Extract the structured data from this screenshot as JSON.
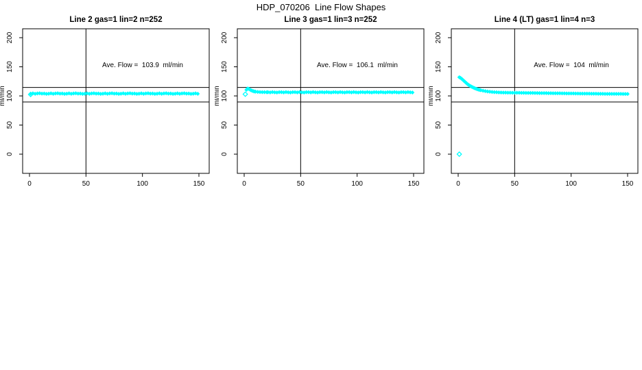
{
  "figure": {
    "title": "HDP_070206  Line Flow Shapes"
  },
  "chart_data": [
    {
      "type": "scatter",
      "title": "Line 2 gas=1 lin=2 n=252",
      "annotation": "Ave. Flow =  103.9  ml/min",
      "ave_flow": 103.9,
      "units": "ml/min",
      "ylabel": "ml/min",
      "xlabel": "",
      "xticks": [
        0,
        50,
        100,
        150
      ],
      "yticks": [
        0,
        50,
        100,
        150,
        200
      ],
      "xlim": [
        -6,
        159
      ],
      "ylim": [
        -33,
        215
      ],
      "grid": false,
      "legend": "none",
      "marker": "diamond",
      "marker_color": "#00FFFF",
      "refline_h": [
        114.5,
        89.5
      ],
      "refline_v": [
        50
      ],
      "open_points": [
        [
          1,
          102.5
        ]
      ],
      "points": [
        [
          1,
          103.8
        ],
        [
          3,
          104.4
        ],
        [
          5,
          103.7
        ],
        [
          7,
          104.2
        ],
        [
          9,
          104.6
        ],
        [
          11,
          103.9
        ],
        [
          13,
          104.1
        ],
        [
          15,
          103.6
        ],
        [
          17,
          103.8
        ],
        [
          19,
          104.4
        ],
        [
          21,
          103.7
        ],
        [
          23,
          104.2
        ],
        [
          25,
          104.6
        ],
        [
          27,
          103.9
        ],
        [
          29,
          104.1
        ],
        [
          31,
          103.6
        ],
        [
          33,
          103.8
        ],
        [
          35,
          104.4
        ],
        [
          37,
          103.7
        ],
        [
          39,
          104.2
        ],
        [
          41,
          104.6
        ],
        [
          43,
          103.9
        ],
        [
          45,
          104.1
        ],
        [
          47,
          103.6
        ],
        [
          49,
          103.8
        ],
        [
          51,
          104.4
        ],
        [
          53,
          103.7
        ],
        [
          55,
          104.2
        ],
        [
          57,
          104.6
        ],
        [
          59,
          103.9
        ],
        [
          61,
          104.1
        ],
        [
          63,
          103.6
        ],
        [
          65,
          103.8
        ],
        [
          67,
          104.4
        ],
        [
          69,
          103.7
        ],
        [
          71,
          104.2
        ],
        [
          73,
          104.6
        ],
        [
          75,
          103.9
        ],
        [
          77,
          104.1
        ],
        [
          79,
          103.6
        ],
        [
          81,
          103.8
        ],
        [
          83,
          104.4
        ],
        [
          85,
          103.7
        ],
        [
          87,
          104.2
        ],
        [
          89,
          104.6
        ],
        [
          91,
          103.9
        ],
        [
          93,
          104.1
        ],
        [
          95,
          103.6
        ],
        [
          97,
          103.8
        ],
        [
          99,
          104.4
        ],
        [
          101,
          103.7
        ],
        [
          103,
          104.2
        ],
        [
          105,
          104.6
        ],
        [
          107,
          103.9
        ],
        [
          109,
          104.1
        ],
        [
          111,
          103.6
        ],
        [
          113,
          103.8
        ],
        [
          115,
          104.4
        ],
        [
          117,
          103.7
        ],
        [
          119,
          104.2
        ],
        [
          121,
          104.6
        ],
        [
          123,
          103.9
        ],
        [
          125,
          104.1
        ],
        [
          127,
          103.6
        ],
        [
          129,
          103.8
        ],
        [
          131,
          104.4
        ],
        [
          133,
          103.7
        ],
        [
          135,
          104.2
        ],
        [
          137,
          104.6
        ],
        [
          139,
          103.9
        ],
        [
          141,
          104.1
        ],
        [
          143,
          103.6
        ],
        [
          145,
          103.8
        ],
        [
          147,
          104.4
        ],
        [
          149,
          103.7
        ]
      ]
    },
    {
      "type": "scatter",
      "title": "Line 3 gas=1 lin=3 n=252",
      "annotation": "Ave. Flow =  106.1  ml/min",
      "ave_flow": 106.1,
      "units": "ml/min",
      "ylabel": "ml/min",
      "xlabel": "",
      "xticks": [
        0,
        50,
        100,
        150
      ],
      "yticks": [
        0,
        50,
        100,
        150,
        200
      ],
      "xlim": [
        -6,
        159
      ],
      "ylim": [
        -33,
        215
      ],
      "grid": false,
      "legend": "none",
      "marker": "diamond",
      "marker_color": "#00FFFF",
      "refline_h": [
        114.5,
        89.5
      ],
      "refline_v": [
        50
      ],
      "open_points": [
        [
          1,
          103.0
        ]
      ],
      "points": [
        [
          2,
          110.5
        ],
        [
          3,
          112.8
        ],
        [
          4,
          112.2
        ],
        [
          5,
          111.0
        ],
        [
          6,
          109.8
        ],
        [
          7,
          108.9
        ],
        [
          8,
          108.2
        ],
        [
          9,
          107.7
        ],
        [
          10,
          107.3
        ],
        [
          12,
          106.9
        ],
        [
          14,
          106.6
        ],
        [
          16,
          106.5
        ],
        [
          18,
          106.4
        ],
        [
          20,
          106.3
        ],
        [
          21,
          106.5
        ],
        [
          23,
          106.0
        ],
        [
          25,
          106.6
        ],
        [
          27,
          106.2
        ],
        [
          29,
          105.9
        ],
        [
          31,
          106.4
        ],
        [
          33,
          106.5
        ],
        [
          35,
          106.0
        ],
        [
          37,
          106.6
        ],
        [
          39,
          106.2
        ],
        [
          41,
          105.9
        ],
        [
          43,
          106.4
        ],
        [
          45,
          106.5
        ],
        [
          47,
          106.0
        ],
        [
          49,
          106.6
        ],
        [
          51,
          106.2
        ],
        [
          53,
          105.9
        ],
        [
          55,
          106.4
        ],
        [
          57,
          106.5
        ],
        [
          59,
          106.0
        ],
        [
          61,
          106.6
        ],
        [
          63,
          106.2
        ],
        [
          65,
          105.9
        ],
        [
          67,
          106.4
        ],
        [
          69,
          106.5
        ],
        [
          71,
          106.0
        ],
        [
          73,
          106.6
        ],
        [
          75,
          106.2
        ],
        [
          77,
          105.9
        ],
        [
          79,
          106.4
        ],
        [
          81,
          106.5
        ],
        [
          83,
          106.0
        ],
        [
          85,
          106.6
        ],
        [
          87,
          106.2
        ],
        [
          89,
          105.9
        ],
        [
          91,
          106.4
        ],
        [
          93,
          106.5
        ],
        [
          95,
          106.0
        ],
        [
          97,
          106.6
        ],
        [
          99,
          106.2
        ],
        [
          101,
          105.9
        ],
        [
          103,
          106.4
        ],
        [
          105,
          106.5
        ],
        [
          107,
          106.0
        ],
        [
          109,
          106.6
        ],
        [
          111,
          106.2
        ],
        [
          113,
          105.9
        ],
        [
          115,
          106.4
        ],
        [
          117,
          106.5
        ],
        [
          119,
          106.0
        ],
        [
          121,
          106.6
        ],
        [
          123,
          106.2
        ],
        [
          125,
          105.9
        ],
        [
          127,
          106.4
        ],
        [
          129,
          106.5
        ],
        [
          131,
          106.0
        ],
        [
          133,
          106.6
        ],
        [
          135,
          106.2
        ],
        [
          137,
          105.9
        ],
        [
          139,
          106.4
        ],
        [
          141,
          106.5
        ],
        [
          143,
          106.0
        ],
        [
          145,
          106.6
        ],
        [
          147,
          106.2
        ],
        [
          149,
          105.9
        ]
      ]
    },
    {
      "type": "scatter",
      "title": "Line 4 (LT) gas=1 lin=4 n=3",
      "annotation": "Ave. Flow =  104  ml/min",
      "ave_flow": 104,
      "units": "ml/min",
      "ylabel": "ml/min",
      "xlabel": "",
      "xticks": [
        0,
        50,
        100,
        150
      ],
      "yticks": [
        0,
        50,
        100,
        150,
        200
      ],
      "xlim": [
        -6,
        159
      ],
      "ylim": [
        -33,
        215
      ],
      "grid": false,
      "legend": "none",
      "marker": "diamond",
      "marker_color": "#00FFFF",
      "refline_h": [
        114.5,
        89.5
      ],
      "refline_v": [
        50
      ],
      "open_points": [
        [
          1,
          0
        ]
      ],
      "points": [
        [
          1,
          132
        ],
        [
          2,
          131
        ],
        [
          3,
          129.5
        ],
        [
          4,
          127.8
        ],
        [
          5,
          126
        ],
        [
          6,
          124.2
        ],
        [
          7,
          122.5
        ],
        [
          8,
          120.8
        ],
        [
          9,
          119.3
        ],
        [
          10,
          118
        ],
        [
          11,
          116.8
        ],
        [
          12,
          115.7
        ],
        [
          13,
          114.7
        ],
        [
          14,
          113.8
        ],
        [
          15,
          113
        ],
        [
          16,
          112.2
        ],
        [
          17,
          111.5
        ],
        [
          18,
          110.9
        ],
        [
          19,
          110.3
        ],
        [
          20,
          109.8
        ],
        [
          22,
          108.9
        ],
        [
          24,
          108.2
        ],
        [
          26,
          107.6
        ],
        [
          28,
          107.2
        ],
        [
          30,
          106.8
        ],
        [
          32,
          106.5
        ],
        [
          34,
          106.3
        ],
        [
          36,
          106.1
        ],
        [
          38,
          105.9
        ],
        [
          40,
          105.8
        ],
        [
          42,
          105.7
        ],
        [
          44,
          105.6
        ],
        [
          46,
          105.6
        ],
        [
          48,
          105.5
        ],
        [
          50,
          105.5
        ],
        [
          52,
          105.4
        ],
        [
          54,
          105.4
        ],
        [
          56,
          105.3
        ],
        [
          58,
          105.3
        ],
        [
          60,
          105.2
        ],
        [
          62,
          105.2
        ],
        [
          64,
          105.1
        ],
        [
          66,
          105.1
        ],
        [
          68,
          105.0
        ],
        [
          70,
          105.0
        ],
        [
          72,
          104.9
        ],
        [
          74,
          104.9
        ],
        [
          76,
          104.8
        ],
        [
          78,
          104.8
        ],
        [
          80,
          104.7
        ],
        [
          82,
          104.7
        ],
        [
          84,
          104.6
        ],
        [
          86,
          104.6
        ],
        [
          88,
          104.5
        ],
        [
          90,
          104.5
        ],
        [
          92,
          104.4
        ],
        [
          94,
          104.4
        ],
        [
          96,
          104.3
        ],
        [
          98,
          104.3
        ],
        [
          100,
          104.2
        ],
        [
          102,
          104.2
        ],
        [
          104,
          104.1
        ],
        [
          106,
          104.1
        ],
        [
          108,
          104.0
        ],
        [
          110,
          104.0
        ],
        [
          112,
          103.9
        ],
        [
          114,
          103.9
        ],
        [
          116,
          103.9
        ],
        [
          118,
          103.8
        ],
        [
          120,
          103.8
        ],
        [
          122,
          103.8
        ],
        [
          124,
          103.7
        ],
        [
          126,
          103.7
        ],
        [
          128,
          103.7
        ],
        [
          130,
          103.6
        ],
        [
          132,
          103.6
        ],
        [
          134,
          103.6
        ],
        [
          136,
          103.6
        ],
        [
          138,
          103.5
        ],
        [
          140,
          103.5
        ],
        [
          142,
          103.5
        ],
        [
          144,
          103.5
        ],
        [
          146,
          103.4
        ],
        [
          148,
          103.4
        ],
        [
          150,
          103.4
        ]
      ]
    }
  ],
  "colors": {
    "marker": "#00FFFF",
    "axis": "#000000",
    "background": "#ffffff"
  }
}
